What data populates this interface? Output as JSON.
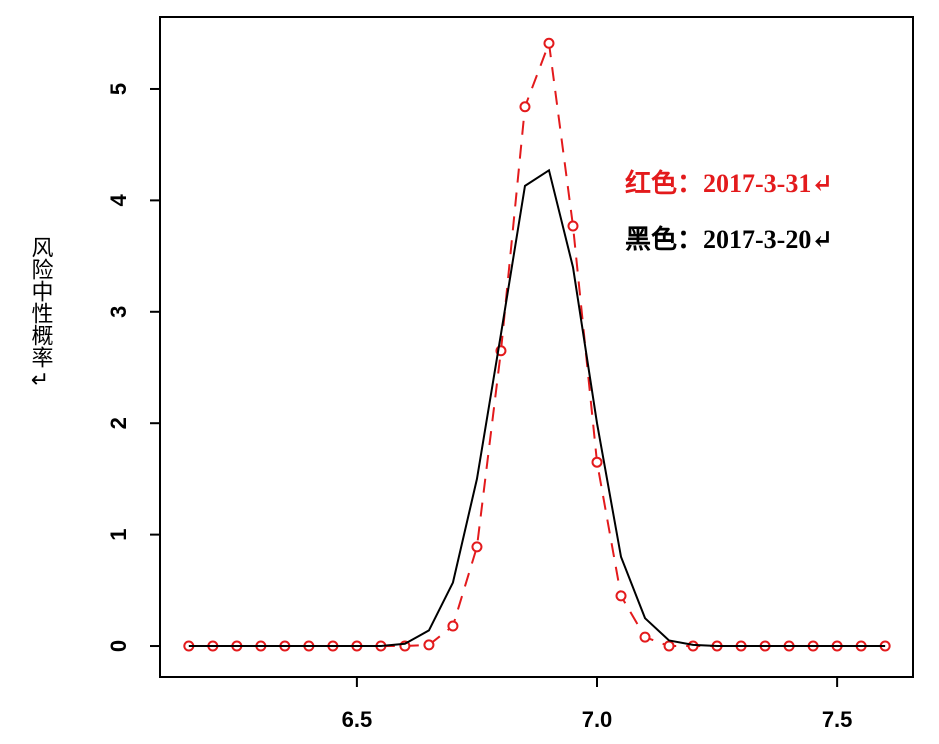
{
  "chart_data": {
    "type": "line",
    "y_label": "风险中性概率↵",
    "x": [
      6.15,
      6.2,
      6.25,
      6.3,
      6.35,
      6.4,
      6.45,
      6.5,
      6.55,
      6.6,
      6.65,
      6.7,
      6.75,
      6.8,
      6.85,
      6.9,
      6.95,
      7.0,
      7.05,
      7.1,
      7.15,
      7.2,
      7.25,
      7.3,
      7.35,
      7.4,
      7.45,
      7.5,
      7.55,
      7.6
    ],
    "series": [
      {
        "name": "红色：2017-3-31↵",
        "color": "#e31a1c",
        "marker": "circle",
        "dashed": true,
        "values": [
          0,
          0,
          0,
          0,
          0,
          0,
          0,
          0,
          0,
          0,
          0.01,
          0.18,
          0.89,
          2.65,
          4.84,
          5.41,
          3.77,
          1.65,
          0.45,
          0.08,
          0,
          0,
          0,
          0,
          0,
          0,
          0,
          0,
          0,
          0
        ]
      },
      {
        "name": "黑色：2017-3-20↵",
        "color": "#000000",
        "marker": "none",
        "dashed": false,
        "values": [
          0,
          0,
          0,
          0,
          0,
          0,
          0,
          0,
          0,
          0.02,
          0.14,
          0.57,
          1.5,
          2.8,
          4.13,
          4.27,
          3.4,
          2.0,
          0.8,
          0.25,
          0.05,
          0.01,
          0,
          0,
          0,
          0,
          0,
          0,
          0,
          0
        ]
      }
    ],
    "xlim": [
      6.09,
      7.658
    ],
    "ylim": [
      -0.278,
      5.646
    ],
    "xticks": [
      6.5,
      {
        "value": 7,
        "label": "7.0"
      },
      7.5
    ],
    "yticks": [
      0,
      1,
      2,
      3,
      4,
      5
    ]
  }
}
